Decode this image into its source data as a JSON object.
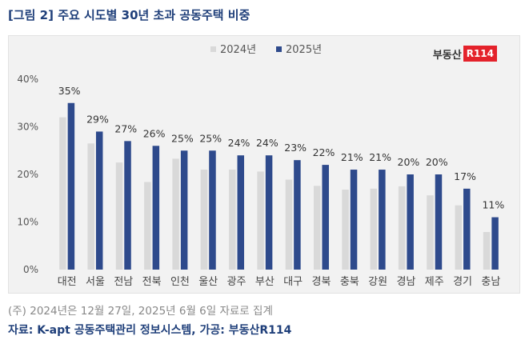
{
  "title": "[그림 2] 주요 시도별 30년 초과 공동주택 비중",
  "logo": {
    "text": "부동산",
    "badge": "R114"
  },
  "note": "(주) 2024년은 12월 27일, 2025년 6월 6일 자료로 집계",
  "source": "자료: K-apt 공동주택관리 정보시스템, 가공: 부동산R114",
  "chart_data": {
    "type": "bar",
    "categories": [
      "대전",
      "서울",
      "전남",
      "전북",
      "인천",
      "울산",
      "광주",
      "부산",
      "대구",
      "경북",
      "충북",
      "강원",
      "경남",
      "제주",
      "경기",
      "충남"
    ],
    "series": [
      {
        "name": "2024년",
        "color": "#d9d9d9",
        "values": [
          32,
          26.5,
          22.5,
          18.4,
          23.3,
          21,
          21,
          20.6,
          18.9,
          17.6,
          16.8,
          17,
          17.5,
          15.6,
          13.5,
          7.9
        ]
      },
      {
        "name": "2025년",
        "color": "#2e4a8c",
        "values": [
          35,
          29,
          27,
          26,
          25,
          25,
          24,
          24,
          23,
          22,
          21,
          21,
          20,
          20,
          17,
          11
        ]
      }
    ],
    "data_labels": [
      "35%",
      "29%",
      "27%",
      "26%",
      "25%",
      "25%",
      "24%",
      "24%",
      "23%",
      "22%",
      "21%",
      "21%",
      "20%",
      "20%",
      "17%",
      "11%"
    ],
    "y_ticks": [
      "0%",
      "10%",
      "20%",
      "30%",
      "40%"
    ],
    "ylim": [
      0,
      40
    ],
    "grid": false,
    "legend_position": "top-center"
  }
}
